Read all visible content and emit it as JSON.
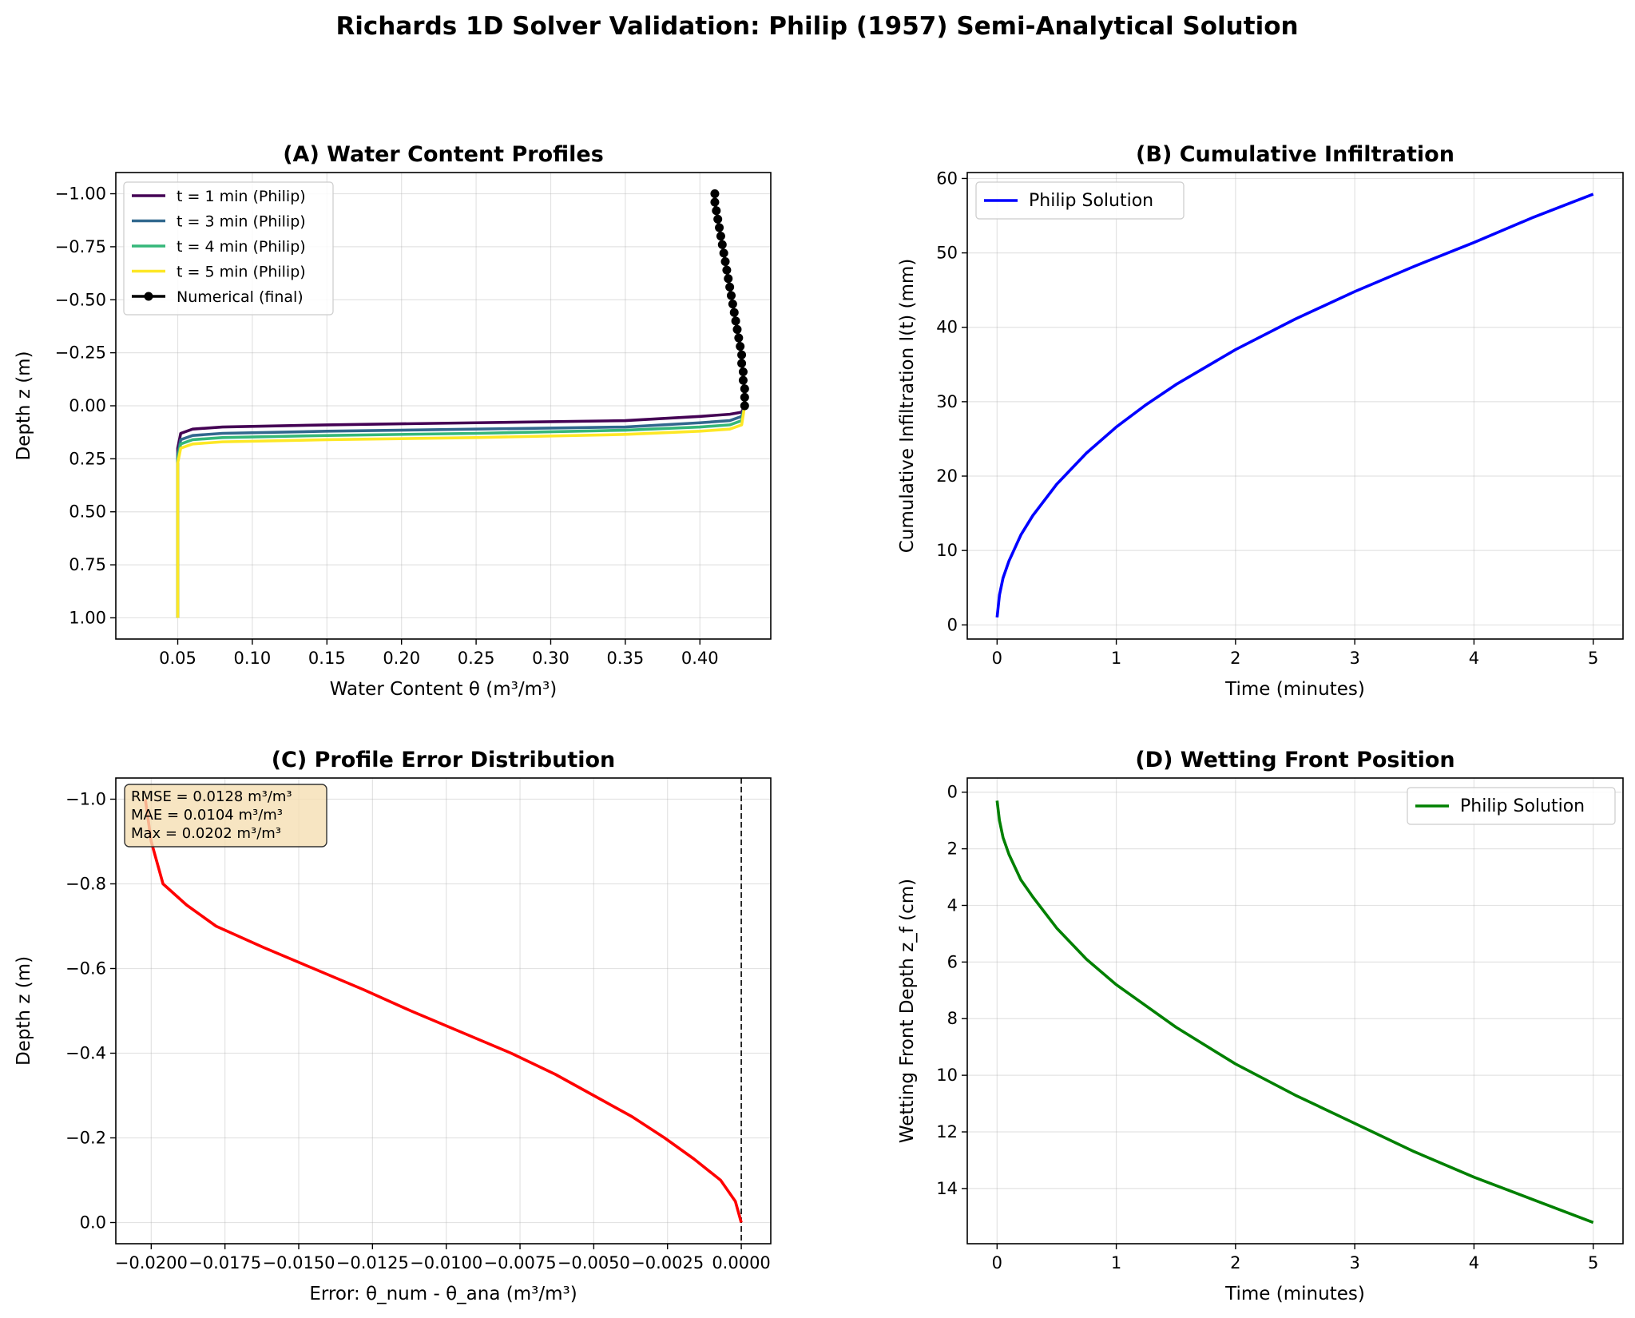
{
  "figure": {
    "title": "Richards 1D Solver Validation: Philip (1957) Semi-Analytical Solution"
  },
  "chart_data": [
    {
      "id": "A",
      "type": "line",
      "title": "(A) Water Content Profiles",
      "xlabel": "Water Content θ (m³/m³)",
      "ylabel": "Depth z (m)",
      "xlim": [
        0.0085,
        0.4475
      ],
      "ylim": [
        1.1,
        -1.1
      ],
      "y_inverted": true,
      "xticks": [
        0.05,
        0.1,
        0.15,
        0.2,
        0.25,
        0.3,
        0.35,
        0.4
      ],
      "xtick_labels": [
        "0.05",
        "0.10",
        "0.15",
        "0.20",
        "0.25",
        "0.30",
        "0.35",
        "0.40"
      ],
      "yticks": [
        -1.0,
        -0.75,
        -0.5,
        -0.25,
        0.0,
        0.25,
        0.5,
        0.75,
        1.0
      ],
      "ytick_labels": [
        "−1.00",
        "−0.75",
        "−0.50",
        "−0.25",
        "0.00",
        "0.25",
        "0.50",
        "0.75",
        "1.00"
      ],
      "grid": true,
      "legend_position": "top-left",
      "series": [
        {
          "name": "t = 1 min (Philip)",
          "color": "#440154",
          "x": [
            0.05,
            0.05,
            0.052,
            0.06,
            0.08,
            0.15,
            0.25,
            0.35,
            0.4,
            0.42,
            0.428,
            0.43
          ],
          "y": [
            1.0,
            0.2,
            0.13,
            0.11,
            0.1,
            0.09,
            0.08,
            0.07,
            0.05,
            0.04,
            0.03,
            0.0
          ]
        },
        {
          "name": "t = 3 min (Philip)",
          "color": "#31688e",
          "x": [
            0.05,
            0.05,
            0.052,
            0.06,
            0.08,
            0.15,
            0.25,
            0.35,
            0.4,
            0.42,
            0.428,
            0.43
          ],
          "y": [
            1.0,
            0.23,
            0.16,
            0.14,
            0.13,
            0.12,
            0.11,
            0.1,
            0.08,
            0.07,
            0.05,
            0.0
          ]
        },
        {
          "name": "t = 4 min (Philip)",
          "color": "#35b779",
          "x": [
            0.05,
            0.05,
            0.052,
            0.06,
            0.08,
            0.15,
            0.25,
            0.35,
            0.4,
            0.42,
            0.428,
            0.43
          ],
          "y": [
            1.0,
            0.25,
            0.18,
            0.16,
            0.15,
            0.14,
            0.13,
            0.115,
            0.1,
            0.09,
            0.07,
            0.0
          ]
        },
        {
          "name": "t = 5 min (Philip)",
          "color": "#fde725",
          "x": [
            0.05,
            0.05,
            0.052,
            0.06,
            0.08,
            0.15,
            0.25,
            0.35,
            0.4,
            0.42,
            0.428,
            0.43
          ],
          "y": [
            1.0,
            0.27,
            0.2,
            0.18,
            0.17,
            0.16,
            0.15,
            0.135,
            0.12,
            0.11,
            0.09,
            0.0
          ]
        },
        {
          "name": "Numerical (final)",
          "color": "#000000",
          "markers": true,
          "x": [
            0.43,
            0.43,
            0.43,
            0.429,
            0.429,
            0.428,
            0.428,
            0.427,
            0.426,
            0.425,
            0.424,
            0.423,
            0.422,
            0.421,
            0.42,
            0.419,
            0.418,
            0.417,
            0.416,
            0.415,
            0.414,
            0.413,
            0.412,
            0.411,
            0.41,
            0.41
          ],
          "y": [
            0.0,
            -0.04,
            -0.08,
            -0.12,
            -0.16,
            -0.2,
            -0.24,
            -0.28,
            -0.32,
            -0.36,
            -0.4,
            -0.44,
            -0.48,
            -0.52,
            -0.56,
            -0.6,
            -0.64,
            -0.68,
            -0.72,
            -0.76,
            -0.8,
            -0.84,
            -0.88,
            -0.92,
            -0.96,
            -1.0
          ]
        }
      ]
    },
    {
      "id": "B",
      "type": "line",
      "title": "(B) Cumulative Infiltration",
      "xlabel": "Time (minutes)",
      "ylabel": "Cumulative Infiltration I(t) (mm)",
      "xlim": [
        -0.25,
        5.25
      ],
      "ylim": [
        -1.9,
        60.8
      ],
      "xticks": [
        0,
        1,
        2,
        3,
        4,
        5
      ],
      "xtick_labels": [
        "0",
        "1",
        "2",
        "3",
        "4",
        "5"
      ],
      "yticks": [
        0,
        10,
        20,
        30,
        40,
        50,
        60
      ],
      "ytick_labels": [
        "0",
        "10",
        "20",
        "30",
        "40",
        "50",
        "60"
      ],
      "grid": true,
      "legend_position": "top-left",
      "series": [
        {
          "name": "Philip Solution",
          "color": "#0000ff",
          "x": [
            0.0,
            0.02,
            0.05,
            0.1,
            0.2,
            0.3,
            0.5,
            0.75,
            1.0,
            1.25,
            1.5,
            2.0,
            2.5,
            3.0,
            3.5,
            4.0,
            4.5,
            5.0
          ],
          "y": [
            1.0,
            4.0,
            6.3,
            8.6,
            12.1,
            14.7,
            18.9,
            23.1,
            26.6,
            29.6,
            32.3,
            37.0,
            41.1,
            44.8,
            48.2,
            51.4,
            54.8,
            57.9
          ]
        }
      ]
    },
    {
      "id": "C",
      "type": "line",
      "title": "(C) Profile Error Distribution",
      "xlabel": "Error: θ_num - θ_ana (m³/m³)",
      "ylabel": "Depth z (m)",
      "xlim": [
        -0.0212,
        0.001
      ],
      "ylim": [
        0.05,
        -1.05
      ],
      "y_inverted": true,
      "xticks": [
        -0.02,
        -0.0175,
        -0.015,
        -0.0125,
        -0.01,
        -0.0075,
        -0.005,
        -0.0025,
        0.0
      ],
      "xtick_labels": [
        "−0.0200",
        "−0.0175",
        "−0.0150",
        "−0.0125",
        "−0.0100",
        "−0.0075",
        "−0.0050",
        "−0.0025",
        "0.0000"
      ],
      "yticks": [
        -1.0,
        -0.8,
        -0.6,
        -0.4,
        -0.2,
        0.0
      ],
      "ytick_labels": [
        "−1.0",
        "−0.8",
        "−0.6",
        "−0.4",
        "−0.2",
        "0.0"
      ],
      "grid": true,
      "reference_line_x": 0.0,
      "annotation": [
        "RMSE = 0.0128 m³/m³",
        "MAE = 0.0104 m³/m³",
        "Max = 0.0202 m³/m³"
      ],
      "series": [
        {
          "name": "",
          "color": "#ff0000",
          "x": [
            0.0,
            -0.0002,
            -0.0007,
            -0.0016,
            -0.0026,
            -0.0037,
            -0.005,
            -0.0063,
            -0.0078,
            -0.0095,
            -0.0112,
            -0.0128,
            -0.0145,
            -0.0162,
            -0.0178,
            -0.0188,
            -0.0196,
            -0.02,
            -0.0202
          ],
          "y": [
            0.0,
            -0.05,
            -0.1,
            -0.15,
            -0.2,
            -0.25,
            -0.3,
            -0.35,
            -0.4,
            -0.45,
            -0.5,
            -0.55,
            -0.6,
            -0.65,
            -0.7,
            -0.75,
            -0.8,
            -0.9,
            -1.0
          ]
        }
      ]
    },
    {
      "id": "D",
      "type": "line",
      "title": "(D) Wetting Front Position",
      "xlabel": "Time (minutes)",
      "ylabel": "Wetting Front Depth z_f (cm)",
      "xlim": [
        -0.25,
        5.25
      ],
      "ylim": [
        15.95,
        -0.5
      ],
      "y_inverted": true,
      "xticks": [
        0,
        1,
        2,
        3,
        4,
        5
      ],
      "xtick_labels": [
        "0",
        "1",
        "2",
        "3",
        "4",
        "5"
      ],
      "yticks": [
        0,
        2,
        4,
        6,
        8,
        10,
        12,
        14
      ],
      "ytick_labels": [
        "0",
        "2",
        "4",
        "6",
        "8",
        "10",
        "12",
        "14"
      ],
      "grid": true,
      "legend_position": "top-right",
      "series": [
        {
          "name": "Philip Solution",
          "color": "#008000",
          "x": [
            0.0,
            0.02,
            0.05,
            0.1,
            0.2,
            0.3,
            0.5,
            0.75,
            1.0,
            1.5,
            2.0,
            2.5,
            3.0,
            3.5,
            4.0,
            4.5,
            5.0
          ],
          "y": [
            0.3,
            1.0,
            1.6,
            2.2,
            3.1,
            3.7,
            4.8,
            5.9,
            6.8,
            8.3,
            9.6,
            10.7,
            11.7,
            12.7,
            13.6,
            14.4,
            15.2
          ]
        }
      ]
    }
  ]
}
